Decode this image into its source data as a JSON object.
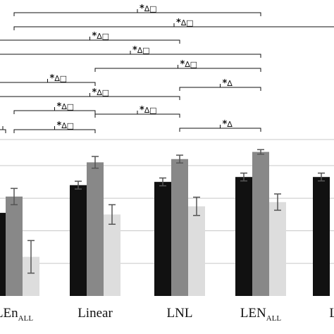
{
  "chart_data": {
    "type": "bar",
    "categories": [
      {
        "main": "LEn",
        "sub": "ALL"
      },
      {
        "main": "Linear",
        "sub": ""
      },
      {
        "main": "LNL",
        "sub": ""
      },
      {
        "main": "LEN",
        "sub": "ALL"
      },
      {
        "main": "LN",
        "sub": ""
      }
    ],
    "series": [
      {
        "color": "#111111",
        "values": [
          2.55,
          3.4,
          3.5,
          3.65,
          3.65
        ],
        "errors": [
          0.0,
          0.12,
          0.12,
          0.12,
          0.12
        ]
      },
      {
        "color": "#888888",
        "values": [
          3.05,
          4.1,
          4.2,
          4.42,
          null
        ],
        "errors": [
          0.25,
          0.18,
          0.12,
          0.07,
          null
        ]
      },
      {
        "color": "#dddddd",
        "values": [
          1.2,
          2.5,
          2.75,
          2.88,
          null
        ],
        "errors": [
          0.5,
          0.3,
          0.28,
          0.25,
          null
        ]
      }
    ],
    "ylim": [
      0,
      4.8
    ],
    "y_gridlines": [
      1,
      2,
      3,
      4
    ],
    "grid": true,
    "significance": [
      {
        "from": 0,
        "to": 3,
        "label": "∆□",
        "star": "*"
      },
      {
        "from": 0,
        "to": 4,
        "label": "∆□",
        "star": "*"
      },
      {
        "from": -1,
        "to": 2,
        "label": "∆□",
        "star": "*"
      },
      {
        "from": -1,
        "to": 3,
        "label": "∆□",
        "star": "*"
      },
      {
        "from": 1,
        "to": 3,
        "label": "∆□",
        "star": "*"
      },
      {
        "from": -1,
        "to": 1,
        "label": "∆□",
        "star": "*"
      },
      {
        "from": 2,
        "to": 3,
        "label": "∆",
        "star": "*"
      },
      {
        "from": -1,
        "to": 2,
        "label": "∆□",
        "star": "*"
      },
      {
        "from": 0,
        "to": 1,
        "label": "∆□",
        "star": "*"
      },
      {
        "from": 1,
        "to": 2,
        "label": "∆□",
        "star": "*"
      },
      {
        "from": 0,
        "to": 0,
        "label": "",
        "star": ""
      },
      {
        "from": 0,
        "to": 1,
        "label": "∆□",
        "star": "*"
      },
      {
        "from": 2,
        "to": 3,
        "label": "∆",
        "star": "*"
      }
    ]
  }
}
